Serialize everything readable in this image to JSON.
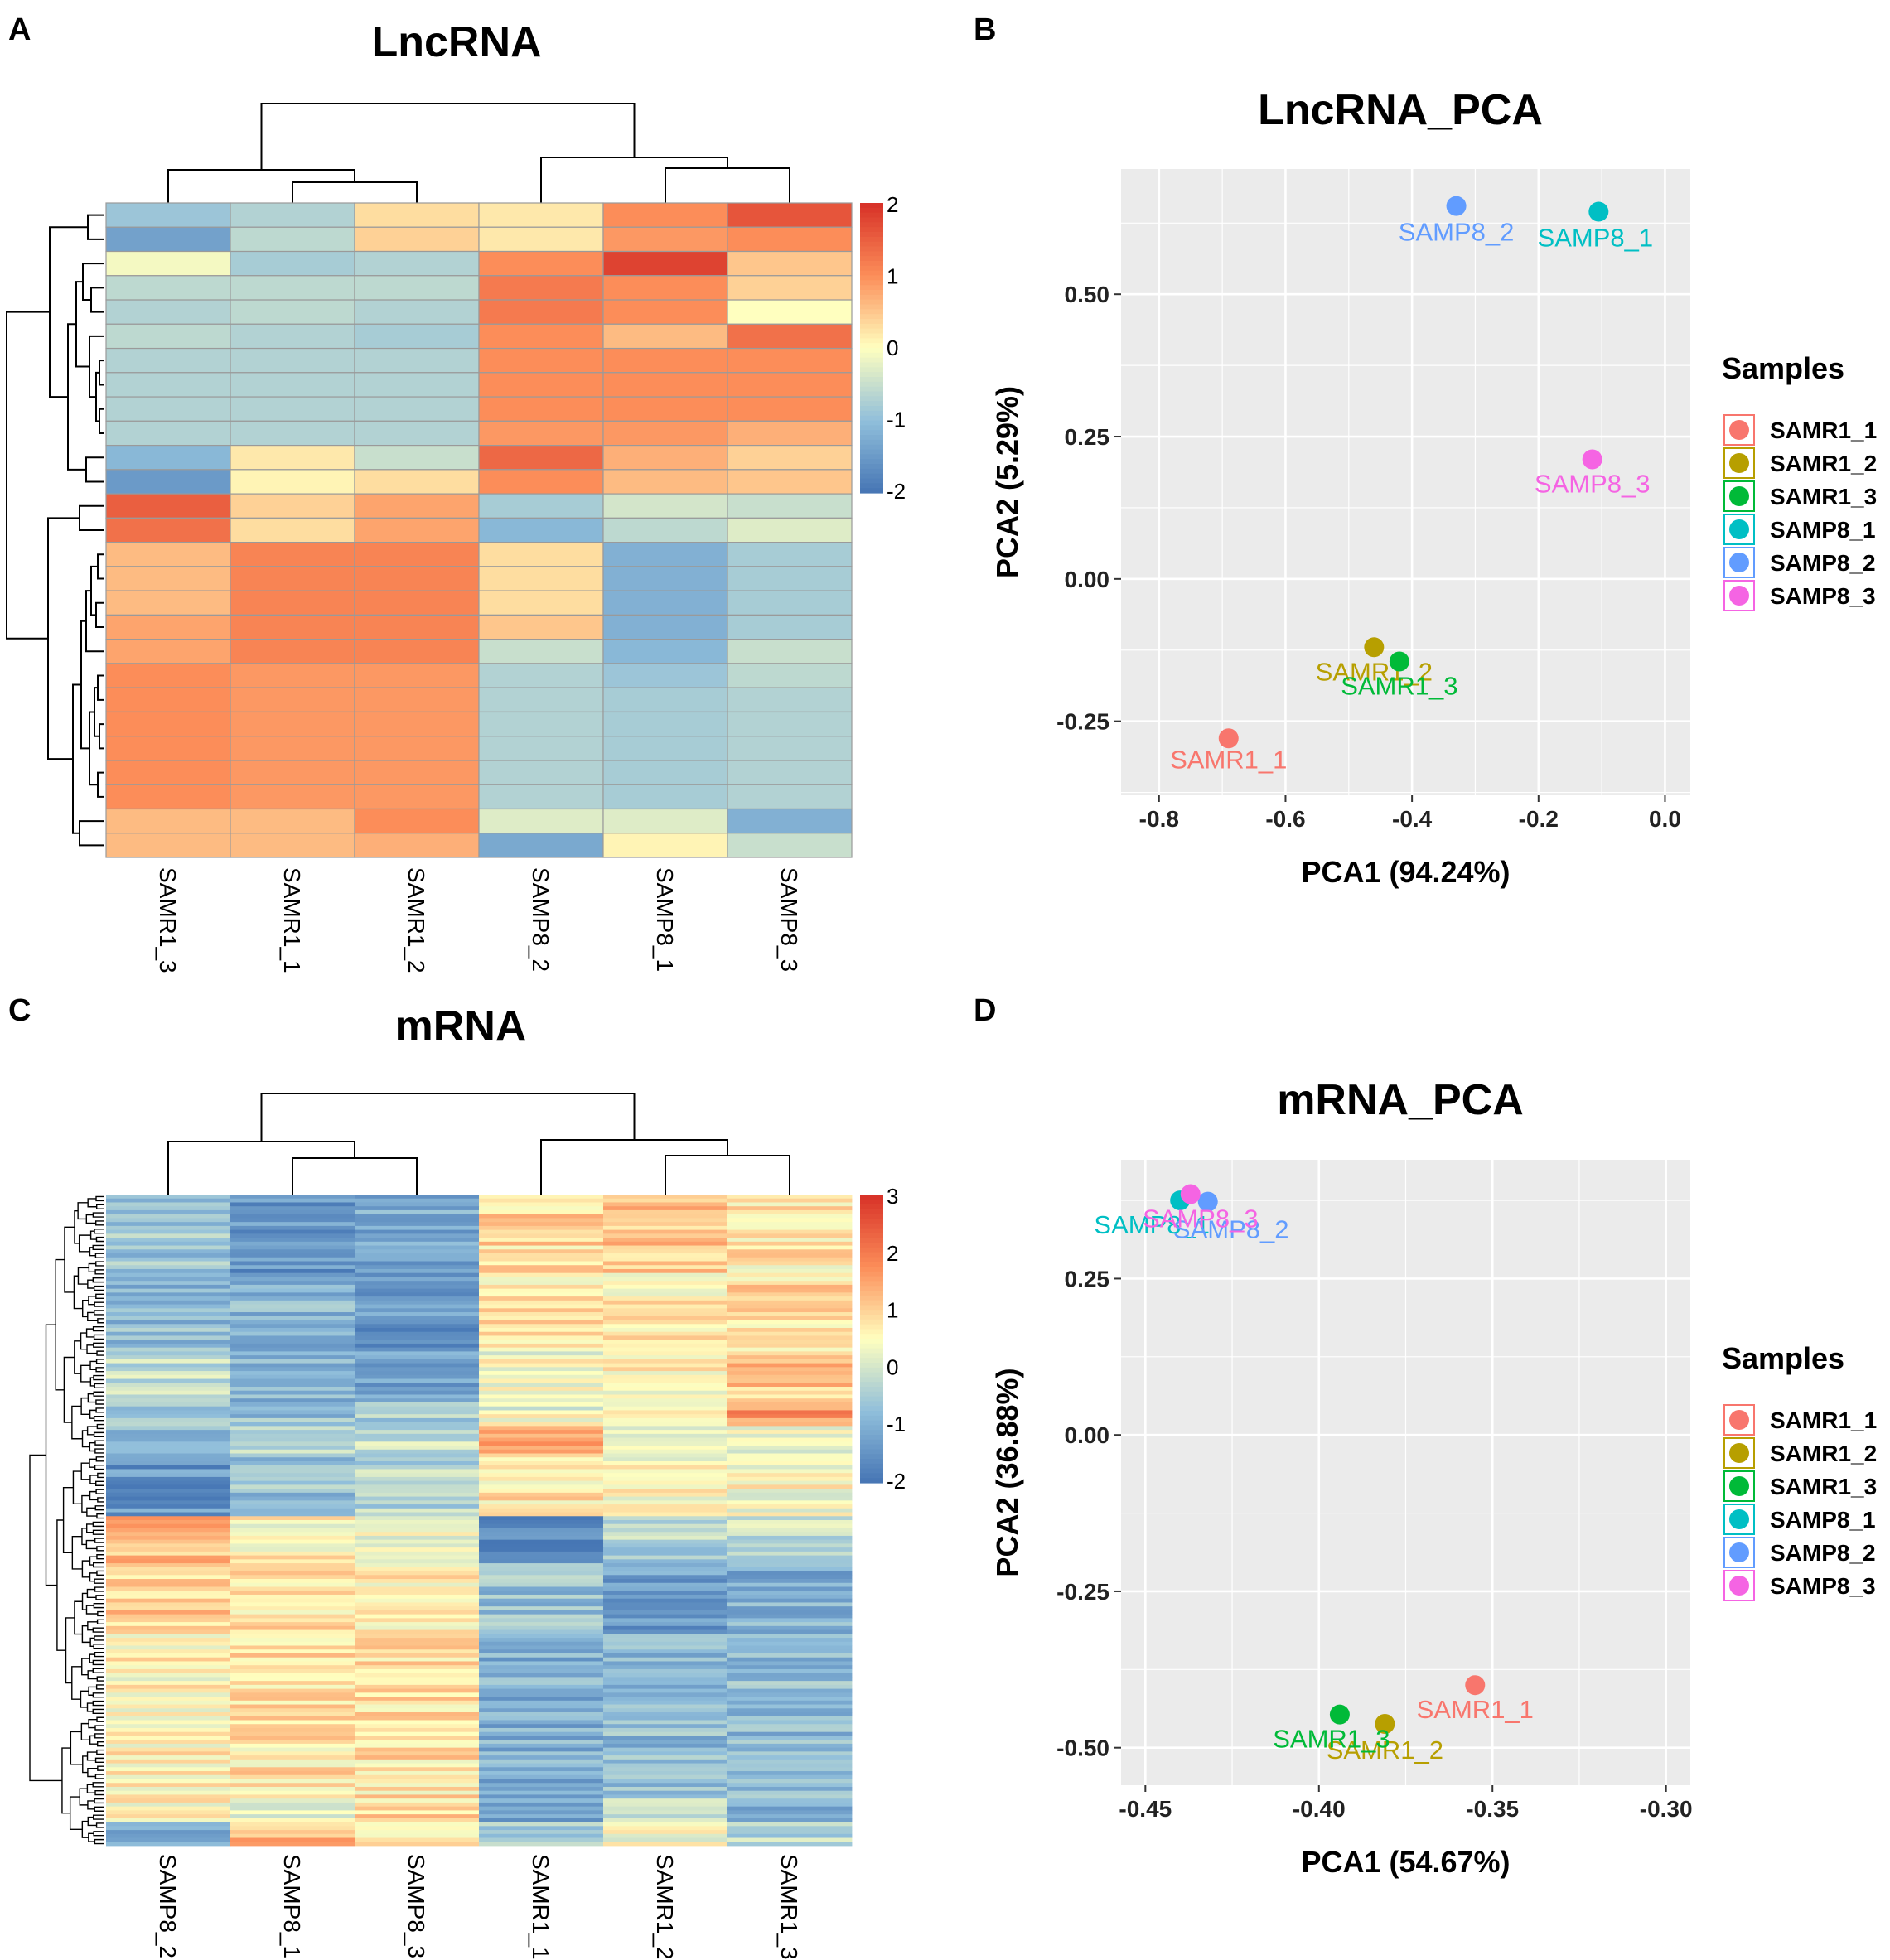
{
  "panels": {
    "A": {
      "letter": "A",
      "title": "LncRNA"
    },
    "B": {
      "letter": "B",
      "title": "LncRNA_PCA"
    },
    "C": {
      "letter": "C",
      "title": "mRNA"
    },
    "D": {
      "letter": "D",
      "title": "mRNA_PCA"
    }
  },
  "colors": {
    "SAMR1_1": "#F8766D",
    "SAMR1_2": "#B79F00",
    "SAMR1_3": "#00BA38",
    "SAMP8_1": "#00BFC4",
    "SAMP8_2": "#619CFF",
    "SAMP8_3": "#F564E3",
    "panel_bg": "#EBEBEB",
    "grid": "#FFFFFF",
    "heat_low": "#4575B4",
    "heat_mid": "#FFFFBF",
    "heat_high": "#D73027"
  },
  "chart_data": [
    {
      "id": "A",
      "type": "heatmap",
      "title": "LncRNA",
      "columns": [
        "SAMR1_3",
        "SAMR1_1",
        "SAMR1_2",
        "SAMP8_2",
        "SAMP8_1",
        "SAMP8_3"
      ],
      "colorbar": {
        "ticks": [
          "2",
          "1",
          "0",
          "-1",
          "-2"
        ],
        "range": [
          -2,
          2
        ]
      },
      "rows": [
        [
          -0.9,
          -0.7,
          0.3,
          0.2,
          1.0,
          1.6
        ],
        [
          -1.4,
          -0.6,
          0.4,
          0.2,
          0.9,
          1.0
        ],
        [
          -0.1,
          -0.8,
          -0.7,
          1.0,
          1.8,
          0.5
        ],
        [
          -0.6,
          -0.6,
          -0.6,
          1.2,
          1.0,
          0.4
        ],
        [
          -0.7,
          -0.6,
          -0.7,
          1.2,
          1.0,
          0.0
        ],
        [
          -0.6,
          -0.7,
          -0.8,
          1.0,
          0.6,
          1.3
        ],
        [
          -0.7,
          -0.7,
          -0.7,
          1.0,
          1.0,
          1.0
        ],
        [
          -0.7,
          -0.7,
          -0.7,
          1.0,
          1.0,
          1.0
        ],
        [
          -0.7,
          -0.7,
          -0.7,
          1.0,
          1.0,
          1.0
        ],
        [
          -0.7,
          -0.7,
          -0.7,
          0.9,
          0.9,
          0.7
        ],
        [
          -1.1,
          0.2,
          -0.5,
          1.4,
          0.7,
          0.4
        ],
        [
          -1.5,
          0.1,
          0.3,
          1.0,
          0.6,
          0.5
        ],
        [
          1.5,
          0.4,
          0.8,
          -0.8,
          -0.4,
          -0.5
        ],
        [
          1.3,
          0.3,
          0.8,
          -1.1,
          -0.6,
          -0.3
        ],
        [
          0.6,
          1.1,
          1.1,
          0.3,
          -1.2,
          -0.8
        ],
        [
          0.6,
          1.1,
          1.1,
          0.3,
          -1.2,
          -0.8
        ],
        [
          0.6,
          1.1,
          1.1,
          0.3,
          -1.2,
          -0.8
        ],
        [
          0.8,
          1.1,
          1.1,
          0.5,
          -1.2,
          -0.8
        ],
        [
          0.8,
          1.1,
          1.1,
          -0.5,
          -1.1,
          -0.5
        ],
        [
          1.0,
          0.9,
          0.9,
          -0.7,
          -0.9,
          -0.6
        ],
        [
          1.0,
          0.9,
          0.9,
          -0.7,
          -0.8,
          -0.7
        ],
        [
          1.0,
          0.9,
          0.9,
          -0.7,
          -0.8,
          -0.7
        ],
        [
          1.0,
          0.9,
          0.9,
          -0.7,
          -0.8,
          -0.7
        ],
        [
          1.0,
          0.9,
          0.9,
          -0.7,
          -0.8,
          -0.7
        ],
        [
          1.0,
          0.9,
          0.9,
          -0.7,
          -0.8,
          -0.7
        ],
        [
          0.6,
          0.6,
          1.0,
          -0.3,
          -0.3,
          -1.2
        ],
        [
          0.6,
          0.6,
          0.7,
          -1.3,
          0.1,
          -0.5
        ]
      ]
    },
    {
      "id": "B",
      "type": "scatter",
      "title": "LncRNA_PCA",
      "xlabel": "PCA1 (94.24%)",
      "ylabel": "PCA2 (5.29%)",
      "xlim": [
        -0.86,
        0.04
      ],
      "ylim": [
        -0.38,
        0.72
      ],
      "xticks": [
        {
          "v": -0.8,
          "t": "-0.8"
        },
        {
          "v": -0.6,
          "t": "-0.6"
        },
        {
          "v": -0.4,
          "t": "-0.4"
        },
        {
          "v": -0.2,
          "t": "-0.2"
        },
        {
          "v": 0.0,
          "t": "0.0"
        }
      ],
      "yticks": [
        {
          "v": -0.25,
          "t": "-0.25"
        },
        {
          "v": 0.0,
          "t": "0.00"
        },
        {
          "v": 0.25,
          "t": "0.25"
        },
        {
          "v": 0.5,
          "t": "0.50"
        }
      ],
      "legend_title": "Samples",
      "points": [
        {
          "sample": "SAMR1_1",
          "x": -0.69,
          "y": -0.28,
          "label": "SAMR1_1"
        },
        {
          "sample": "SAMR1_2",
          "x": -0.46,
          "y": -0.12,
          "label": "SAMR1_2"
        },
        {
          "sample": "SAMR1_3",
          "x": -0.42,
          "y": -0.145,
          "label": "SAMR1_3"
        },
        {
          "sample": "SAMP8_1",
          "x": -0.105,
          "y": 0.645,
          "label": "SAMP8_1"
        },
        {
          "sample": "SAMP8_2",
          "x": -0.33,
          "y": 0.655,
          "label": "SAMP8_2"
        },
        {
          "sample": "SAMP8_3",
          "x": -0.115,
          "y": 0.21,
          "label": "SAMP8_3"
        }
      ]
    },
    {
      "id": "C",
      "type": "heatmap",
      "title": "mRNA",
      "columns": [
        "SAMP8_2",
        "SAMP8_1",
        "SAMP8_3",
        "SAMR1_1",
        "SAMR1_2",
        "SAMR1_3"
      ],
      "colorbar": {
        "ticks": [
          "3",
          "2",
          "1",
          "0",
          "-1",
          "-2"
        ],
        "range": [
          -2,
          3
        ]
      },
      "blocks": [
        {
          "rows": 20,
          "v": [
            -0.6,
            -1.4,
            -1.1,
            0.9,
            1.1,
            0.7
          ]
        },
        {
          "rows": 20,
          "v": [
            -0.8,
            -0.9,
            -1.4,
            0.7,
            0.7,
            0.9
          ]
        },
        {
          "rows": 13,
          "v": [
            -0.2,
            -1.0,
            -1.2,
            0.4,
            0.6,
            1.1
          ]
        },
        {
          "rows": 6,
          "v": [
            -0.4,
            -0.7,
            -0.4,
            0.3,
            0.3,
            1.7
          ]
        },
        {
          "rows": 7,
          "v": [
            -0.7,
            -0.3,
            -0.1,
            1.6,
            0.4,
            0.2
          ]
        },
        {
          "rows": 16,
          "v": [
            -1.4,
            -0.7,
            -0.3,
            0.7,
            0.6,
            0.5
          ]
        },
        {
          "rows": 12,
          "v": [
            1.2,
            0.6,
            0.4,
            -1.6,
            -0.4,
            -0.2
          ]
        },
        {
          "rows": 18,
          "v": [
            1.0,
            0.8,
            0.6,
            -0.7,
            -1.3,
            -1.0
          ]
        },
        {
          "rows": 42,
          "v": [
            0.6,
            0.8,
            0.8,
            -1.0,
            -0.8,
            -0.8
          ]
        },
        {
          "rows": 6,
          "v": [
            0.5,
            0.2,
            0.9,
            -1.2,
            -0.3,
            -1.0
          ]
        },
        {
          "rows": 6,
          "v": [
            -0.9,
            1.3,
            0.8,
            -0.5,
            0.3,
            -0.3
          ]
        }
      ]
    },
    {
      "id": "D",
      "type": "scatter",
      "title": "mRNA_PCA",
      "xlabel": "PCA1 (54.67%)",
      "ylabel": "PCA2 (36.88%)",
      "xlim": [
        -0.457,
        -0.293
      ],
      "ylim": [
        -0.56,
        0.44
      ],
      "xticks": [
        {
          "v": -0.45,
          "t": "-0.45"
        },
        {
          "v": -0.4,
          "t": "-0.40"
        },
        {
          "v": -0.35,
          "t": "-0.35"
        },
        {
          "v": -0.3,
          "t": "-0.30"
        }
      ],
      "yticks": [
        {
          "v": -0.5,
          "t": "-0.50"
        },
        {
          "v": -0.25,
          "t": "-0.25"
        },
        {
          "v": 0.0,
          "t": "0.00"
        },
        {
          "v": 0.25,
          "t": "0.25"
        }
      ],
      "legend_title": "Samples",
      "points": [
        {
          "sample": "SAMR1_1",
          "x": -0.355,
          "y": -0.4,
          "label": "SAMR1_1"
        },
        {
          "sample": "SAMR1_2",
          "x": -0.381,
          "y": -0.462,
          "label": "SAMR1_2"
        },
        {
          "sample": "SAMR1_3",
          "x": -0.394,
          "y": -0.447,
          "label": "SAMR1_3"
        },
        {
          "sample": "SAMP8_1",
          "x": -0.44,
          "y": 0.375,
          "label": "SAMP8_1"
        },
        {
          "sample": "SAMP8_2",
          "x": -0.432,
          "y": 0.373,
          "label": "SAMP8_2"
        },
        {
          "sample": "SAMP8_3",
          "x": -0.437,
          "y": 0.385,
          "label": "SAMP8_3"
        }
      ]
    }
  ],
  "legend": {
    "title": "Samples",
    "items": [
      "SAMR1_1",
      "SAMR1_2",
      "SAMR1_3",
      "SAMP8_1",
      "SAMP8_2",
      "SAMP8_3"
    ]
  }
}
